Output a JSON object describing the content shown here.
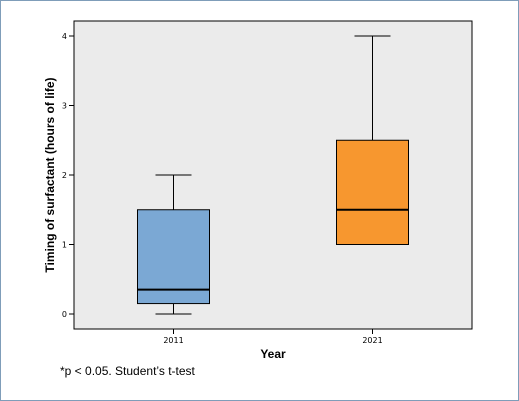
{
  "chart_data": {
    "type": "boxplot",
    "title": "",
    "xlabel": "Year",
    "ylabel": "Timing of surfactant (hours of life)",
    "ylim": [
      -0.2,
      4.2
    ],
    "yticks": [
      "0",
      "1",
      "2",
      "3",
      "4"
    ],
    "categories": [
      "2011",
      "2021"
    ],
    "boxes": [
      {
        "category": "2011",
        "min": 0,
        "q1": 0.15,
        "median": 0.35,
        "q3": 1.5,
        "max": 2,
        "color": "#7ba8d4"
      },
      {
        "category": "2021",
        "min": 1,
        "q1": 1,
        "median": 1.5,
        "q3": 2.5,
        "max": 4,
        "color": "#f7972f"
      }
    ],
    "plot_background": "#ebebeb",
    "grid": false,
    "legend": "none"
  },
  "footnote": "*p <  0.05. Student’s t-test"
}
